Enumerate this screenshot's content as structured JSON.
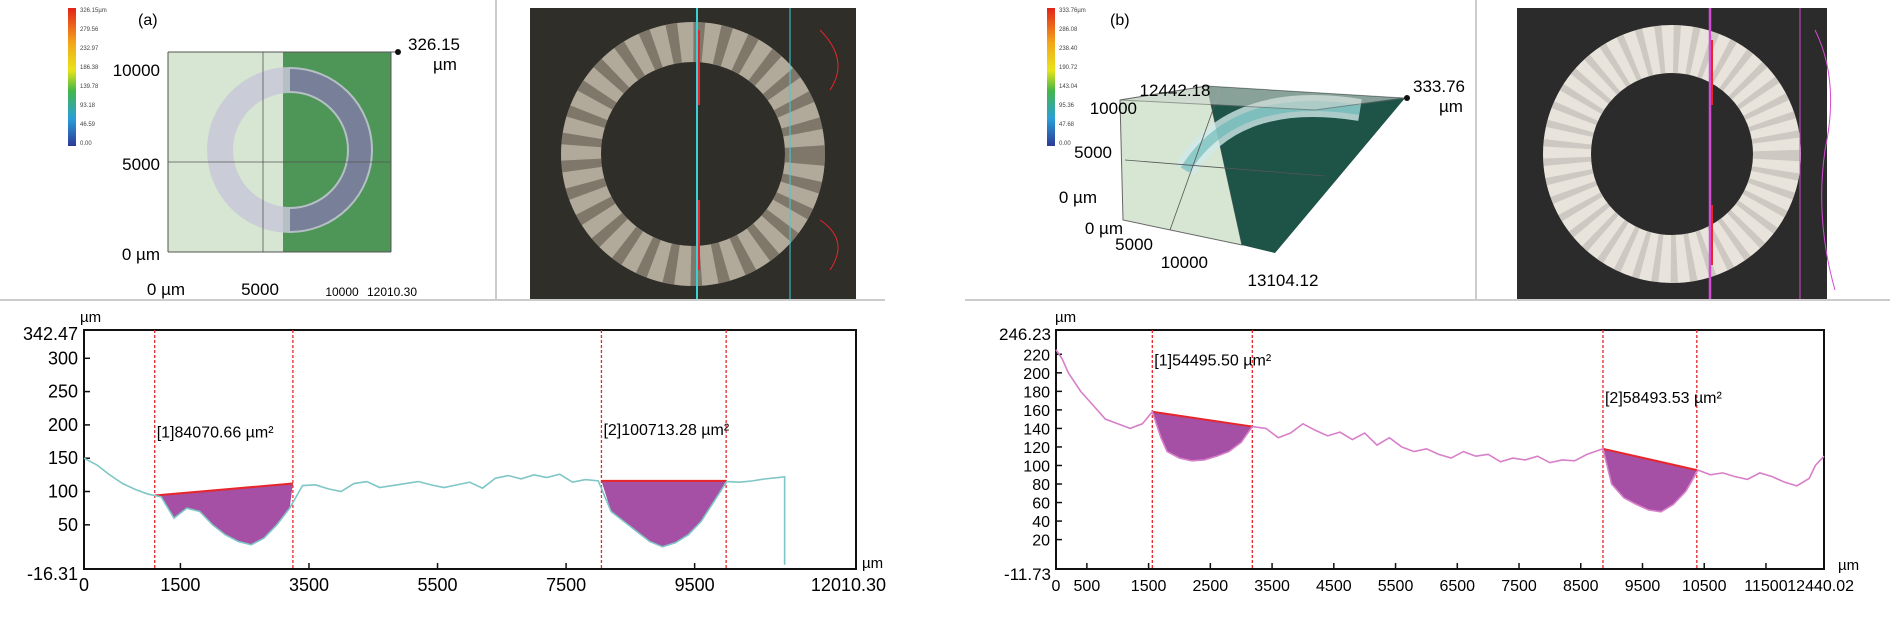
{
  "colors": {
    "cyan_profile": "#7fc6c6",
    "magenta_profile": "#d77fc9",
    "fill_purple": "#9b3d9b",
    "red": "#e6262a"
  },
  "chart_data": [
    {
      "panel_label": "(a)",
      "type": "line",
      "unit": "µm",
      "max_height_label": "326.15",
      "colorbar_ticks": [
        "326.15µm",
        "279.56",
        "232.97",
        "186.38",
        "139.78",
        "93.18",
        "46.59",
        "0.00"
      ],
      "map_y_ticks": [
        "10000",
        "5000",
        "0 µm"
      ],
      "map_x_ticks": [
        "0 µm",
        "5000",
        "10000",
        "12010.30"
      ],
      "profile": {
        "ymax_label": "342.47",
        "ymin_label": "-16.31",
        "ylim": [
          -16.31,
          342.47
        ],
        "yticks": [
          50,
          100,
          150,
          200,
          250,
          300
        ],
        "xlim": [
          0,
          12010.3
        ],
        "xticks": [
          0,
          1500,
          3500,
          5500,
          7500,
          9500,
          12010.3
        ],
        "x_tick_labels": [
          "0",
          "1500",
          "3500",
          "5500",
          "7500",
          "9500",
          "12010.30"
        ],
        "x": [
          0,
          200,
          400,
          600,
          800,
          1000,
          1100,
          1200,
          1400,
          1600,
          1800,
          2000,
          2200,
          2400,
          2600,
          2800,
          3000,
          3200,
          3400,
          3600,
          3800,
          4000,
          4200,
          4400,
          4600,
          4800,
          5000,
          5200,
          5400,
          5600,
          5800,
          6000,
          6200,
          6400,
          6600,
          6800,
          7000,
          7200,
          7400,
          7600,
          7800,
          8000,
          8200,
          8400,
          8600,
          8800,
          9000,
          9200,
          9400,
          9600,
          9800,
          10000,
          10200,
          10400,
          10600,
          10800,
          10900
        ],
        "y": [
          150,
          140,
          125,
          112,
          103,
          96,
          94,
          92,
          60,
          75,
          70,
          50,
          35,
          25,
          20,
          30,
          50,
          75,
          109,
          110,
          104,
          100,
          112,
          115,
          106,
          109,
          112,
          115,
          110,
          106,
          110,
          114,
          105,
          120,
          124,
          119,
          125,
          121,
          126,
          114,
          118,
          116,
          70,
          55,
          40,
          25,
          17,
          23,
          35,
          55,
          85,
          115,
          114,
          116,
          119,
          121,
          122
        ],
        "end_drop": {
          "x": 10900,
          "y": -10
        },
        "cursors": [
          1100,
          3250,
          8050,
          9990
        ],
        "regions": [
          {
            "label": "[1]84070.66 µm²",
            "x0": 1100,
            "y0": 94,
            "x1": 3250,
            "y1": 112
          },
          {
            "label": "[2]100713.28 µm²",
            "x0": 8050,
            "y0": 116,
            "x1": 9990,
            "y1": 116
          }
        ]
      }
    },
    {
      "panel_label": "(b)",
      "type": "line",
      "unit": "µm",
      "max_height_label": "333.76",
      "colorbar_ticks": [
        "333.76µm",
        "286.08",
        "238.40",
        "190.72",
        "143.04",
        "95.36",
        "47.68",
        "0.00"
      ],
      "map_y_ticks": [
        "12442.18",
        "10000",
        "5000",
        "0 µm"
      ],
      "map_x_ticks": [
        "0 µm",
        "5000",
        "10000",
        "13104.12"
      ],
      "profile": {
        "ymax_label": "246.23",
        "ymin_label": "-11.73",
        "ylim": [
          -11.73,
          246.23
        ],
        "yticks": [
          20,
          40,
          60,
          80,
          100,
          120,
          140,
          160,
          180,
          200,
          220
        ],
        "xlim": [
          0,
          12440.02
        ],
        "xticks": [
          0,
          500,
          1500,
          2500,
          3500,
          4500,
          5500,
          6500,
          7500,
          8500,
          9500,
          10500,
          11500,
          12440.02
        ],
        "x_tick_labels": [
          "0",
          "500",
          "1500",
          "2500",
          "3500",
          "4500",
          "5500",
          "6500",
          "7500",
          "8500",
          "9500",
          "10500",
          "11500",
          "12440.02"
        ],
        "x": [
          0,
          100,
          200,
          400,
          600,
          800,
          1000,
          1200,
          1400,
          1560,
          1700,
          1800,
          2000,
          2200,
          2400,
          2600,
          2800,
          3000,
          3180,
          3400,
          3600,
          3800,
          4000,
          4200,
          4400,
          4600,
          4800,
          5000,
          5200,
          5400,
          5600,
          5800,
          6000,
          6200,
          6400,
          6600,
          6800,
          7000,
          7200,
          7400,
          7600,
          7800,
          8000,
          8200,
          8400,
          8600,
          8860,
          9000,
          9200,
          9400,
          9600,
          9800,
          10000,
          10200,
          10400,
          10600,
          10800,
          11000,
          11200,
          11400,
          11600,
          11800,
          12000,
          12200,
          12300,
          12440
        ],
        "y": [
          225,
          215,
          200,
          180,
          165,
          150,
          145,
          140,
          145,
          158,
          130,
          115,
          108,
          105,
          106,
          110,
          115,
          125,
          142,
          140,
          130,
          135,
          145,
          138,
          132,
          136,
          128,
          135,
          122,
          130,
          120,
          115,
          118,
          112,
          108,
          115,
          110,
          112,
          104,
          108,
          106,
          110,
          103,
          106,
          105,
          112,
          118,
          80,
          65,
          58,
          52,
          50,
          58,
          72,
          95,
          90,
          92,
          88,
          85,
          92,
          88,
          82,
          78,
          86,
          100,
          110
        ],
        "cursors": [
          1560,
          3180,
          8860,
          10380
        ],
        "regions": [
          {
            "label": "[1]54495.50 µm²",
            "x0": 1560,
            "y0": 158,
            "x1": 3180,
            "y1": 142
          },
          {
            "label": "[2]58493.53 µm²",
            "x0": 8860,
            "y0": 118,
            "x1": 10380,
            "y1": 95
          }
        ]
      }
    }
  ]
}
